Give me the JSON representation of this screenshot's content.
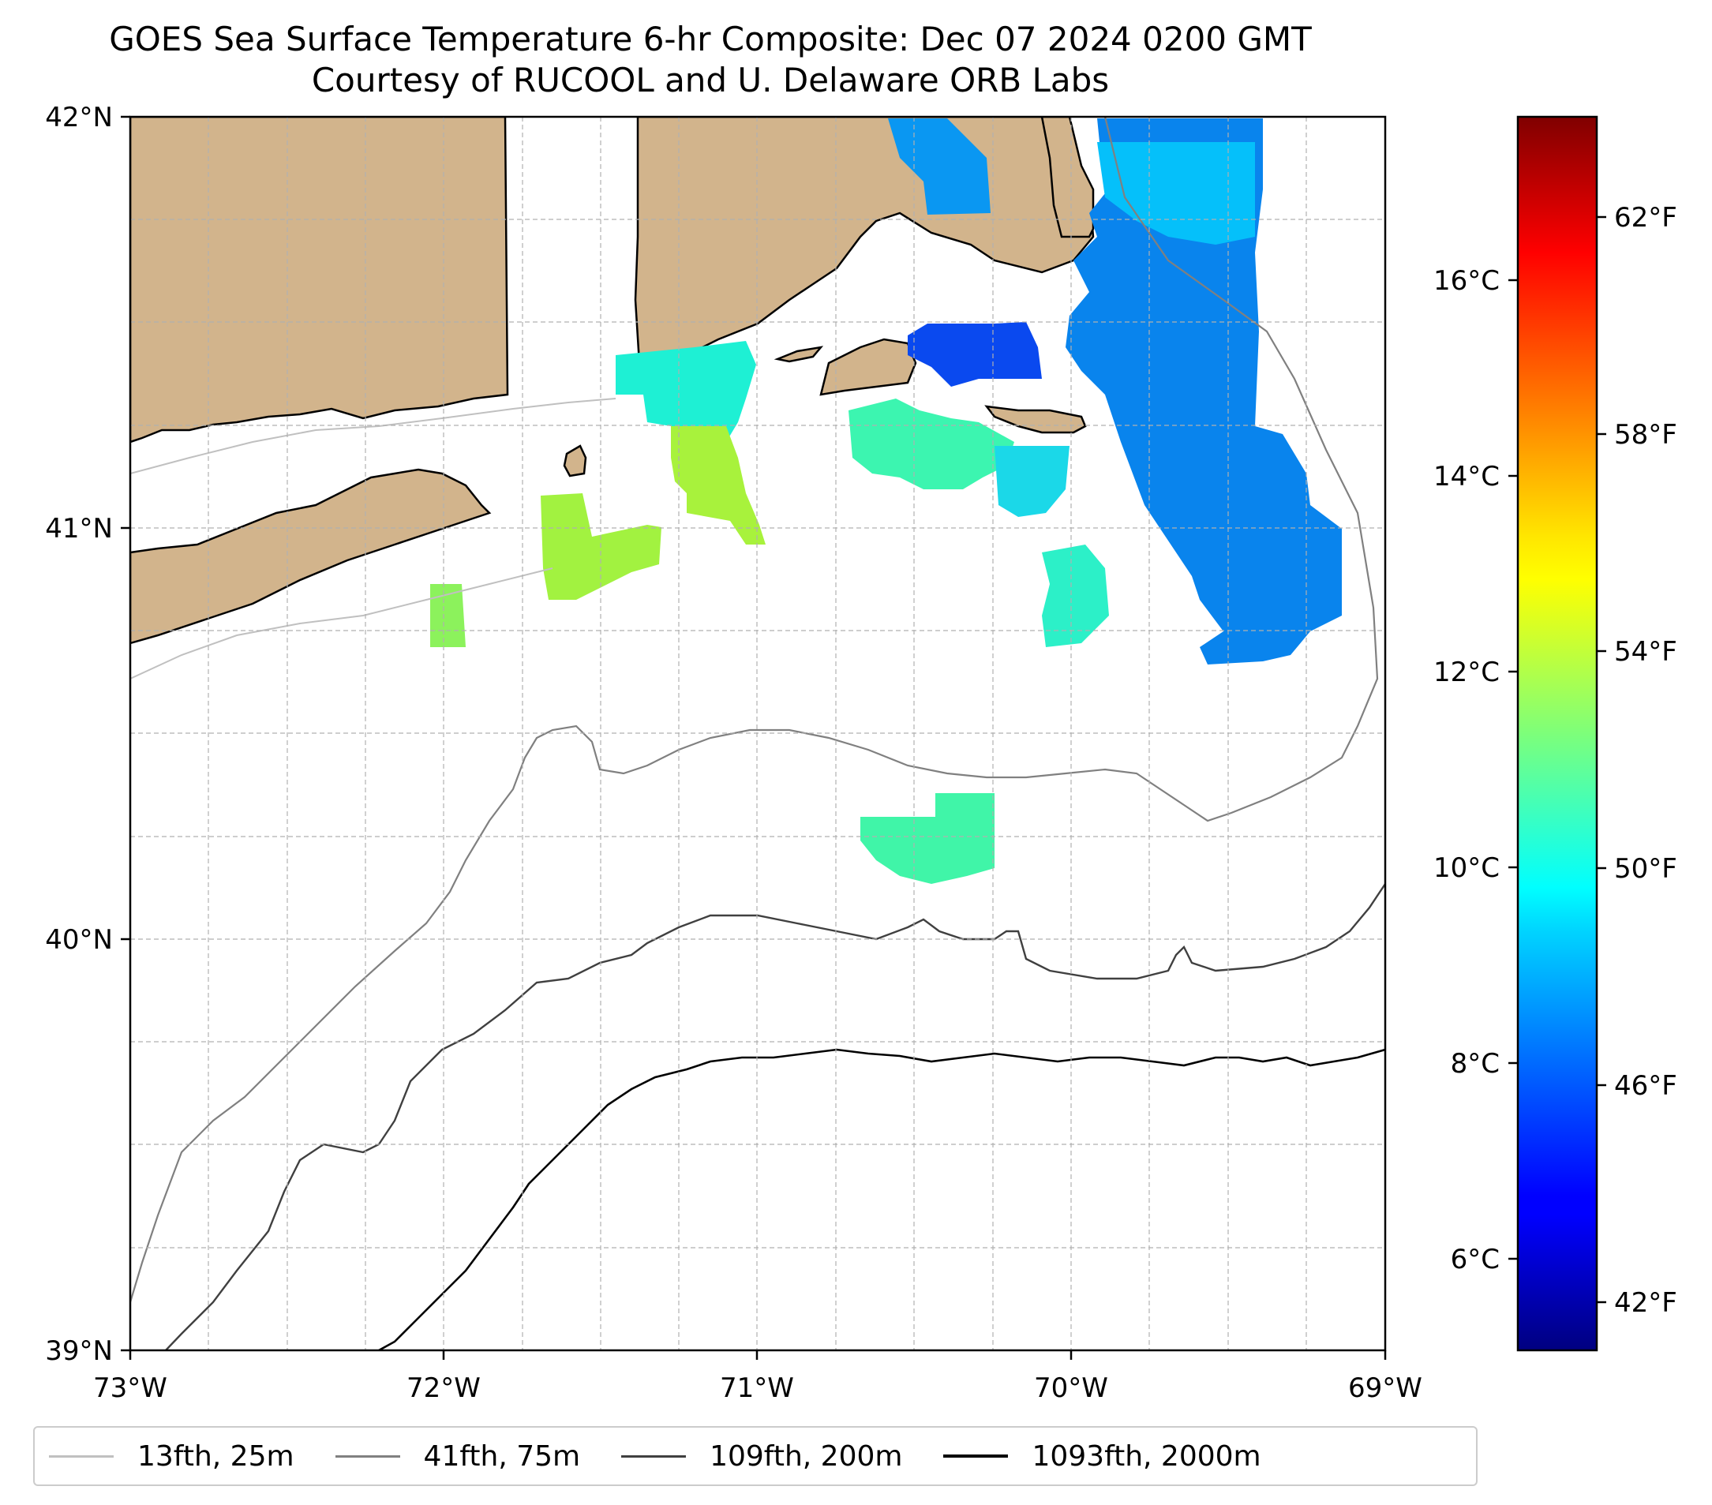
{
  "title": {
    "line1": "GOES Sea Surface Temperature 6-hr Composite: Dec 07 2024 0200 GMT",
    "line2": "Courtesy of RUCOOL and U. Delaware ORB Labs"
  },
  "map": {
    "lon_range": [
      -73,
      -69
    ],
    "lat_range": [
      39,
      42
    ],
    "gridlines": true,
    "x_ticks": [
      "73°W",
      "72°W",
      "71°W",
      "70°W",
      "69°W"
    ],
    "y_ticks": [
      "42°N",
      "41°N",
      "40°N",
      "39°N"
    ],
    "land_color": "#d2b48c",
    "colormap": "jet"
  },
  "colorbar": {
    "celsius_ticks": [
      "16°C",
      "14°C",
      "12°C",
      "10°C",
      "8°C",
      "6°C"
    ],
    "fahrenheit_ticks": [
      "62°F",
      "58°F",
      "54°F",
      "50°F",
      "46°F",
      "42°F"
    ],
    "range_celsius": [
      5.0,
      17.5
    ]
  },
  "legend": {
    "items": [
      {
        "label": "13fth, 25m",
        "color": "#c0c0c0"
      },
      {
        "label": "41fth, 75m",
        "color": "#808080"
      },
      {
        "label": "109fth, 200m",
        "color": "#404040"
      },
      {
        "label": "1093fth, 2000m",
        "color": "#000000"
      }
    ]
  }
}
